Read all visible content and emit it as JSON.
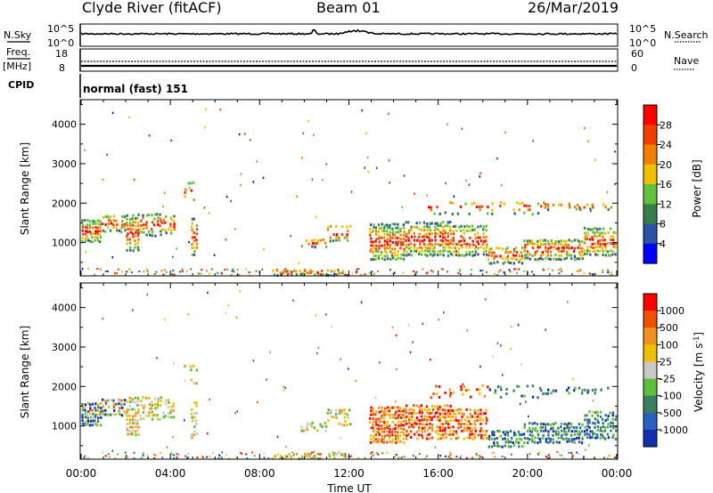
{
  "header": {
    "station": "Clyde River (fitACF)",
    "beam": "Beam 01",
    "date": "26/Mar/2019"
  },
  "status_panel": {
    "nsky_label": "N.Sky",
    "nsearch_label": "N.Search",
    "nsky_ticks": [
      "10^5",
      "10^0"
    ],
    "nsearch_ticks": [
      "10^5",
      "10^0"
    ],
    "freq_label": "Freq.",
    "freq_unit": "[MHz]",
    "freq_ticks": [
      "18",
      "8"
    ],
    "nave_label": "Nave",
    "nave_ticks": [
      "60",
      "0"
    ],
    "cpid_label": "CPID",
    "cpid_value": "normal (fast) 151"
  },
  "chart_data": [
    {
      "type": "heatmap",
      "quantity": "Power",
      "ylabel": "Slant Range [km]",
      "ytick_labels": [
        "1000",
        "2000",
        "3000",
        "4000"
      ],
      "yticks": [
        1000,
        2000,
        3000,
        4000
      ],
      "ylim": [
        180,
        4600
      ],
      "xlim_hours": [
        0,
        24
      ],
      "xtick_labels": [
        "00:00",
        "04:00",
        "08:00",
        "12:00",
        "16:00",
        "20:00",
        "00:00"
      ],
      "xticks_hours": [
        0,
        4,
        8,
        12,
        16,
        20,
        24
      ],
      "colorbar": {
        "label": "Power [dB]",
        "ticks": [
          "4",
          "8",
          "12",
          "16",
          "20",
          "24",
          "28"
        ],
        "colors": [
          "#0000ff",
          "#2c52a8",
          "#3a7d4c",
          "#62c13c",
          "#f0c000",
          "#f08000",
          "#f04000",
          "#ff0000"
        ]
      }
    },
    {
      "type": "heatmap",
      "quantity": "Velocity",
      "ylabel": "Slant Range [km]",
      "ytick_labels": [
        "1000",
        "2000",
        "3000",
        "4000"
      ],
      "yticks": [
        1000,
        2000,
        3000,
        4000
      ],
      "ylim": [
        180,
        4600
      ],
      "xlim_hours": [
        0,
        24
      ],
      "xtick_labels": [
        "00:00",
        "04:00",
        "08:00",
        "12:00",
        "16:00",
        "20:00",
        "00:00"
      ],
      "xticks_hours": [
        0,
        4,
        8,
        12,
        16,
        20,
        24
      ],
      "xlabel": "Time UT",
      "colorbar": {
        "label": "Velocity [m s",
        "label_sup": "-1",
        "label_end": "]",
        "ticks": [
          "1000",
          "500",
          "100",
          "25",
          "-25",
          "-100",
          "-500",
          "-1000"
        ],
        "colors": [
          "#1030b0",
          "#2a60c0",
          "#3a8060",
          "#5abf3a",
          "#c8c8c8",
          "#f0c000",
          "#f09020",
          "#f05000",
          "#ff0000"
        ]
      }
    }
  ]
}
